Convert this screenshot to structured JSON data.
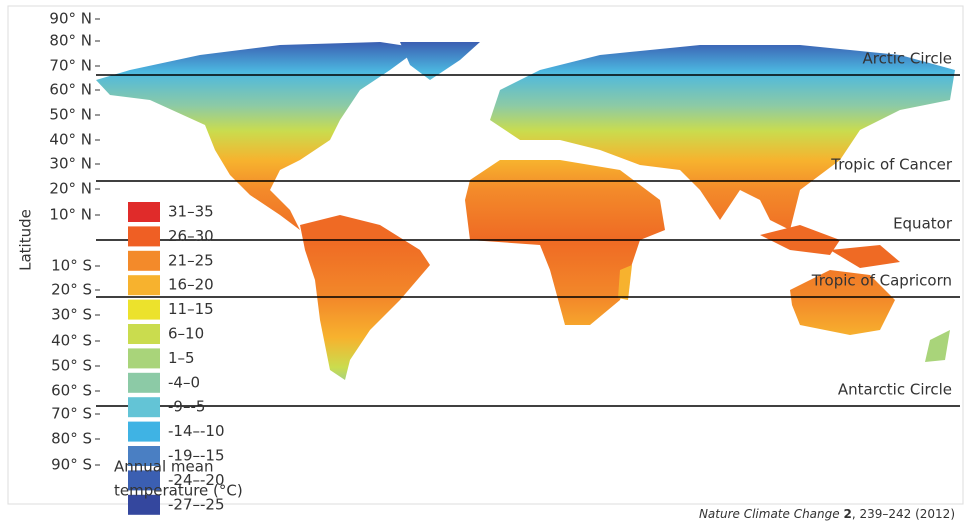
{
  "axis_label": "Latitude",
  "latitude_labels": [
    "90° N",
    "80° N",
    "70° N",
    "60° N",
    "50° N",
    "40° N",
    "30° N",
    "20° N",
    "10° N",
    "10° S",
    "20° S",
    "30° S",
    "40° S",
    "50° S",
    "60° S",
    "70° S",
    "80° S",
    "90° S"
  ],
  "reference_lines": [
    {
      "label": "Arctic Circle"
    },
    {
      "label": "Tropic of Cancer"
    },
    {
      "label": "Equator"
    },
    {
      "label": "Tropic of Capricorn"
    },
    {
      "label": "Antarctic Circle"
    }
  ],
  "legend": {
    "title_lines": [
      "Annual mean",
      "temperature (°C)"
    ],
    "items": [
      {
        "label": "31–35",
        "color": "#e02b2a"
      },
      {
        "label": "26–30",
        "color": "#ef5f24"
      },
      {
        "label": "21–25",
        "color": "#f38a2a"
      },
      {
        "label": "16–20",
        "color": "#f7b22e"
      },
      {
        "label": "11–15",
        "color": "#ece22c"
      },
      {
        "label": "6–10",
        "color": "#cadc4e"
      },
      {
        "label": "1–5",
        "color": "#a9d47a"
      },
      {
        "label": "-4–0",
        "color": "#8ccaa6"
      },
      {
        "label": "-9–-5",
        "color": "#63c4d6"
      },
      {
        "label": "-14–-10",
        "color": "#3fb3e4"
      },
      {
        "label": "-19–-15",
        "color": "#4a7fc3"
      },
      {
        "label": "-24–-20",
        "color": "#3b5fb2"
      },
      {
        "label": "-27–-25",
        "color": "#34479e"
      }
    ]
  },
  "citation": {
    "journal": "Nature Climate Change",
    "volume": "2",
    "pages": ", 239–242 (2012)"
  }
}
